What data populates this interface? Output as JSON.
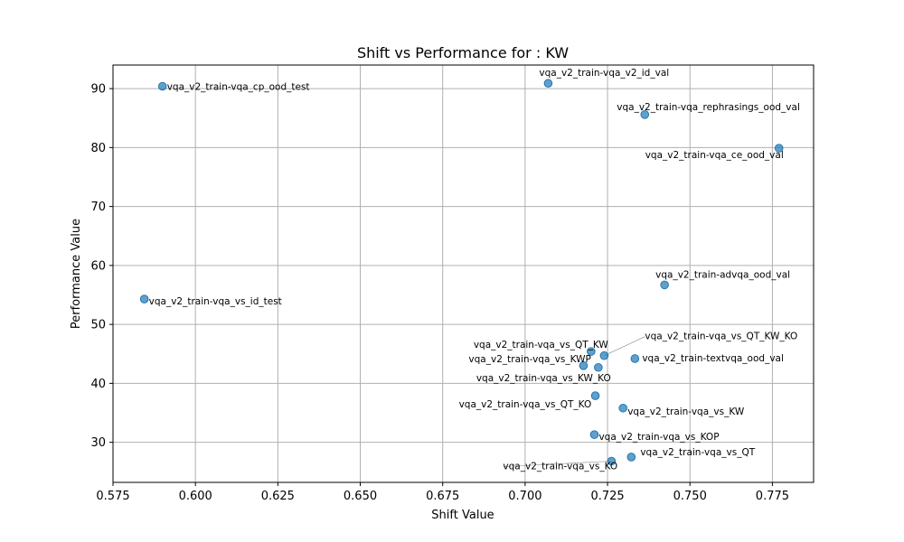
{
  "chart_data": {
    "type": "scatter",
    "title": "Shift vs Performance for : KW",
    "xlabel": "Shift Value",
    "ylabel": "Performance Value",
    "xlim": [
      0.575,
      0.7875
    ],
    "ylim": [
      23.2,
      94.0
    ],
    "xticks": [
      0.575,
      0.6,
      0.625,
      0.65,
      0.675,
      0.7,
      0.725,
      0.75,
      0.775
    ],
    "xtick_labels": [
      "0.575",
      "0.600",
      "0.625",
      "0.650",
      "0.675",
      "0.700",
      "0.725",
      "0.750",
      "0.775"
    ],
    "yticks": [
      30,
      40,
      50,
      60,
      70,
      80,
      90
    ],
    "ytick_labels": [
      "30",
      "40",
      "50",
      "60",
      "70",
      "80",
      "90"
    ],
    "grid": true,
    "marker_color": "#1f77b4",
    "points": [
      {
        "x": 0.59,
        "y": 90.4,
        "label": "vqa_v2_train-vqa_cp_ood_test"
      },
      {
        "x": 0.707,
        "y": 90.9,
        "label": "vqa_v2_train-vqa_v2_id_val"
      },
      {
        "x": 0.7363,
        "y": 85.6,
        "label": "vqa_v2_train-vqa_rephrasings_ood_val"
      },
      {
        "x": 0.777,
        "y": 79.9,
        "label": "vqa_v2_train-vqa_ce_ood_val"
      },
      {
        "x": 0.7423,
        "y": 56.7,
        "label": "vqa_v2_train-advqa_ood_val"
      },
      {
        "x": 0.5845,
        "y": 54.3,
        "label": "vqa_v2_train-vqa_vs_id_test"
      },
      {
        "x": 0.724,
        "y": 44.7,
        "label": "vqa_v2_train-vqa_vs_QT_KW_KO"
      },
      {
        "x": 0.72,
        "y": 45.4,
        "label": "vqa_v2_train-vqa_vs_QT_KW"
      },
      {
        "x": 0.7333,
        "y": 44.2,
        "label": "vqa_v2_train-textvqa_ood_val"
      },
      {
        "x": 0.7177,
        "y": 43.0,
        "label": "vqa_v2_train-vqa_vs_KWP"
      },
      {
        "x": 0.7222,
        "y": 42.7,
        "label": "vqa_v2_train-vqa_vs_KW_KO"
      },
      {
        "x": 0.7213,
        "y": 37.9,
        "label": "vqa_v2_train-vqa_vs_QT_KO"
      },
      {
        "x": 0.7297,
        "y": 35.8,
        "label": "vqa_v2_train-vqa_vs_KW"
      },
      {
        "x": 0.721,
        "y": 31.3,
        "label": "vqa_v2_train-vqa_vs_KOP"
      },
      {
        "x": 0.7322,
        "y": 27.5,
        "label": "vqa_v2_train-vqa_vs_QT"
      },
      {
        "x": 0.7262,
        "y": 26.8,
        "label": "vqa_v2_train-vqa_vs_KO"
      }
    ]
  }
}
